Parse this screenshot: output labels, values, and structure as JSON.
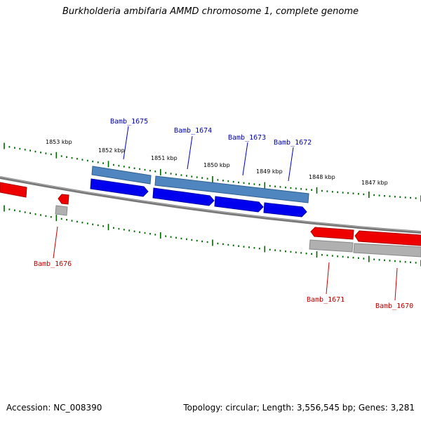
{
  "title": "Burkholderia ambifaria AMMD chromosome 1, complete genome",
  "accession": "Accession: NC_008390",
  "summary": "Topology: circular; Length: 3,556,545 bp; Genes: 3,281",
  "colors": {
    "forward_gene": "#0000ee",
    "forward_gene_light": "#4f86c0",
    "reverse_gene": "#ee0000",
    "reverse_gene_light": "#b0b0b0",
    "tick": "#006600",
    "backbone": "#777777",
    "forward_label": "#0000aa",
    "reverse_label": "#bb0000"
  },
  "scale_labels": [
    "1853 kbp",
    "1852 kbp",
    "1851 kbp",
    "1850 kbp",
    "1849 kbp",
    "1848 kbp",
    "1847 kbp"
  ],
  "forward_genes": [
    {
      "name": "Bamb_1675"
    },
    {
      "name": "Bamb_1674"
    },
    {
      "name": "Bamb_1673"
    },
    {
      "name": "Bamb_1672"
    }
  ],
  "reverse_genes": [
    {
      "name": "Bamb_1676"
    },
    {
      "name": "Bamb_1671"
    },
    {
      "name": "Bamb_1670"
    }
  ]
}
